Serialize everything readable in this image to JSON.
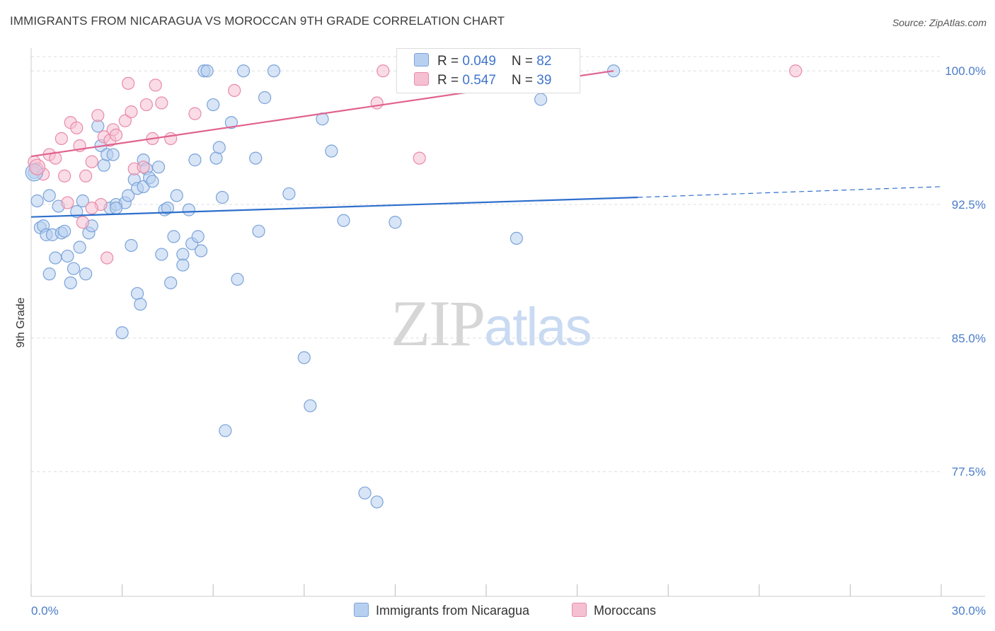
{
  "title": "IMMIGRANTS FROM NICARAGUA VS MOROCCAN 9TH GRADE CORRELATION CHART",
  "source": "Source: ZipAtlas.com",
  "watermark": {
    "zip": "ZIP",
    "atlas": "atlas"
  },
  "legend": {
    "blue": {
      "r_label": "R = ",
      "r_value": "0.049",
      "n_label": "N = ",
      "n_value": "82"
    },
    "pink": {
      "r_label": "R = ",
      "r_value": "0.547",
      "n_label": "N = ",
      "n_value": "39"
    }
  },
  "colors": {
    "blue_fill": "#b8d0f0",
    "blue_stroke": "#7aa3d8",
    "blue_line": "#2e6fcc",
    "pink_fill": "#f5c0d2",
    "pink_stroke": "#e98aaa",
    "pink_line": "#e0628f",
    "grid": "#dddddd",
    "tick_label": "#4a7cc8"
  },
  "chart_data": {
    "type": "scatter",
    "title": "IMMIGRANTS FROM NICARAGUA VS MOROCCAN 9TH GRADE CORRELATION CHART",
    "xlabel": "",
    "ylabel": "9th Grade",
    "xlim": [
      0,
      30
    ],
    "ylim": [
      70.5,
      101.2
    ],
    "x_tick_labels": [
      "0.0%",
      "30.0%"
    ],
    "y_ticks": [
      77.5,
      85.0,
      92.5,
      100.0
    ],
    "y_tick_labels": [
      "77.5%",
      "85.0%",
      "92.5%",
      "100.0%"
    ],
    "grid": true,
    "legend_position": "top-center",
    "series": [
      {
        "name": "Immigrants from Nicaragua",
        "r": 0.049,
        "n": 82,
        "trend": {
          "x_start": 0.0,
          "y_start": 91.8,
          "x_solid_end": 20.0,
          "y_solid_end": 92.9,
          "x_end": 30.0,
          "y_end": 93.5
        },
        "points": [
          [
            0.1,
            94.3
          ],
          [
            0.2,
            92.7
          ],
          [
            0.3,
            91.2
          ],
          [
            0.4,
            91.3
          ],
          [
            0.5,
            90.8
          ],
          [
            0.6,
            93.0
          ],
          [
            0.6,
            88.6
          ],
          [
            0.7,
            90.8
          ],
          [
            0.8,
            89.5
          ],
          [
            0.9,
            92.4
          ],
          [
            1.0,
            90.9
          ],
          [
            1.1,
            91.0
          ],
          [
            1.2,
            89.6
          ],
          [
            1.3,
            88.1
          ],
          [
            1.4,
            88.9
          ],
          [
            1.5,
            92.1
          ],
          [
            1.6,
            90.1
          ],
          [
            1.7,
            92.7
          ],
          [
            1.8,
            88.6
          ],
          [
            1.9,
            90.9
          ],
          [
            2.0,
            91.3
          ],
          [
            2.2,
            96.9
          ],
          [
            2.3,
            95.8
          ],
          [
            2.4,
            94.7
          ],
          [
            2.5,
            95.3
          ],
          [
            2.6,
            92.3
          ],
          [
            2.7,
            95.3
          ],
          [
            2.8,
            92.5
          ],
          [
            3.0,
            85.3
          ],
          [
            3.1,
            92.6
          ],
          [
            3.2,
            93.0
          ],
          [
            3.3,
            90.2
          ],
          [
            3.4,
            93.9
          ],
          [
            3.5,
            93.4
          ],
          [
            3.5,
            87.5
          ],
          [
            3.6,
            86.9
          ],
          [
            3.7,
            95.0
          ],
          [
            3.7,
            93.5
          ],
          [
            3.8,
            94.5
          ],
          [
            3.9,
            94.0
          ],
          [
            4.0,
            93.8
          ],
          [
            4.2,
            94.6
          ],
          [
            4.3,
            89.7
          ],
          [
            4.4,
            92.2
          ],
          [
            4.5,
            92.3
          ],
          [
            4.6,
            88.1
          ],
          [
            4.7,
            90.7
          ],
          [
            4.8,
            93.0
          ],
          [
            5.0,
            89.7
          ],
          [
            5.0,
            89.1
          ],
          [
            5.2,
            92.2
          ],
          [
            5.3,
            90.3
          ],
          [
            5.4,
            95.0
          ],
          [
            5.5,
            90.7
          ],
          [
            5.6,
            89.9
          ],
          [
            5.7,
            100.0
          ],
          [
            5.8,
            100.0
          ],
          [
            6.0,
            98.1
          ],
          [
            6.1,
            95.1
          ],
          [
            6.2,
            95.7
          ],
          [
            6.3,
            92.9
          ],
          [
            6.4,
            79.8
          ],
          [
            6.6,
            97.1
          ],
          [
            6.8,
            88.3
          ],
          [
            7.0,
            100.0
          ],
          [
            7.4,
            95.1
          ],
          [
            7.5,
            91.0
          ],
          [
            7.7,
            98.5
          ],
          [
            8.0,
            100.0
          ],
          [
            8.5,
            93.1
          ],
          [
            9.0,
            83.9
          ],
          [
            9.2,
            81.2
          ],
          [
            9.6,
            97.3
          ],
          [
            9.9,
            95.5
          ],
          [
            10.3,
            91.6
          ],
          [
            11.0,
            76.3
          ],
          [
            11.4,
            75.8
          ],
          [
            12.0,
            91.5
          ],
          [
            16.0,
            90.6
          ],
          [
            16.8,
            98.4
          ],
          [
            19.2,
            100.0
          ],
          [
            2.8,
            92.3
          ]
        ]
      },
      {
        "name": "Moroccans",
        "r": 0.547,
        "n": 39,
        "trend": {
          "x_start": 0.0,
          "y_start": 95.2,
          "x_end": 19.2,
          "y_end": 100.0
        },
        "points": [
          [
            0.1,
            94.9
          ],
          [
            0.2,
            94.5
          ],
          [
            0.4,
            94.2
          ],
          [
            0.6,
            95.3
          ],
          [
            0.8,
            95.1
          ],
          [
            1.0,
            96.2
          ],
          [
            1.1,
            94.1
          ],
          [
            1.2,
            92.6
          ],
          [
            1.3,
            97.1
          ],
          [
            1.5,
            96.8
          ],
          [
            1.6,
            95.8
          ],
          [
            1.7,
            91.5
          ],
          [
            1.8,
            94.1
          ],
          [
            2.0,
            94.9
          ],
          [
            2.2,
            97.5
          ],
          [
            2.3,
            92.5
          ],
          [
            2.4,
            96.3
          ],
          [
            2.5,
            89.5
          ],
          [
            2.6,
            96.1
          ],
          [
            2.7,
            96.7
          ],
          [
            2.8,
            96.4
          ],
          [
            3.1,
            97.2
          ],
          [
            3.2,
            99.3
          ],
          [
            3.3,
            97.7
          ],
          [
            3.4,
            94.5
          ],
          [
            3.7,
            94.6
          ],
          [
            3.8,
            98.1
          ],
          [
            4.0,
            96.2
          ],
          [
            4.1,
            99.2
          ],
          [
            4.3,
            98.2
          ],
          [
            4.6,
            96.2
          ],
          [
            5.4,
            97.6
          ],
          [
            6.7,
            98.9
          ],
          [
            11.4,
            98.2
          ],
          [
            11.6,
            100.0
          ],
          [
            12.8,
            95.1
          ],
          [
            15.8,
            100.0
          ],
          [
            25.2,
            100.0
          ],
          [
            2.0,
            92.3
          ]
        ]
      }
    ]
  }
}
